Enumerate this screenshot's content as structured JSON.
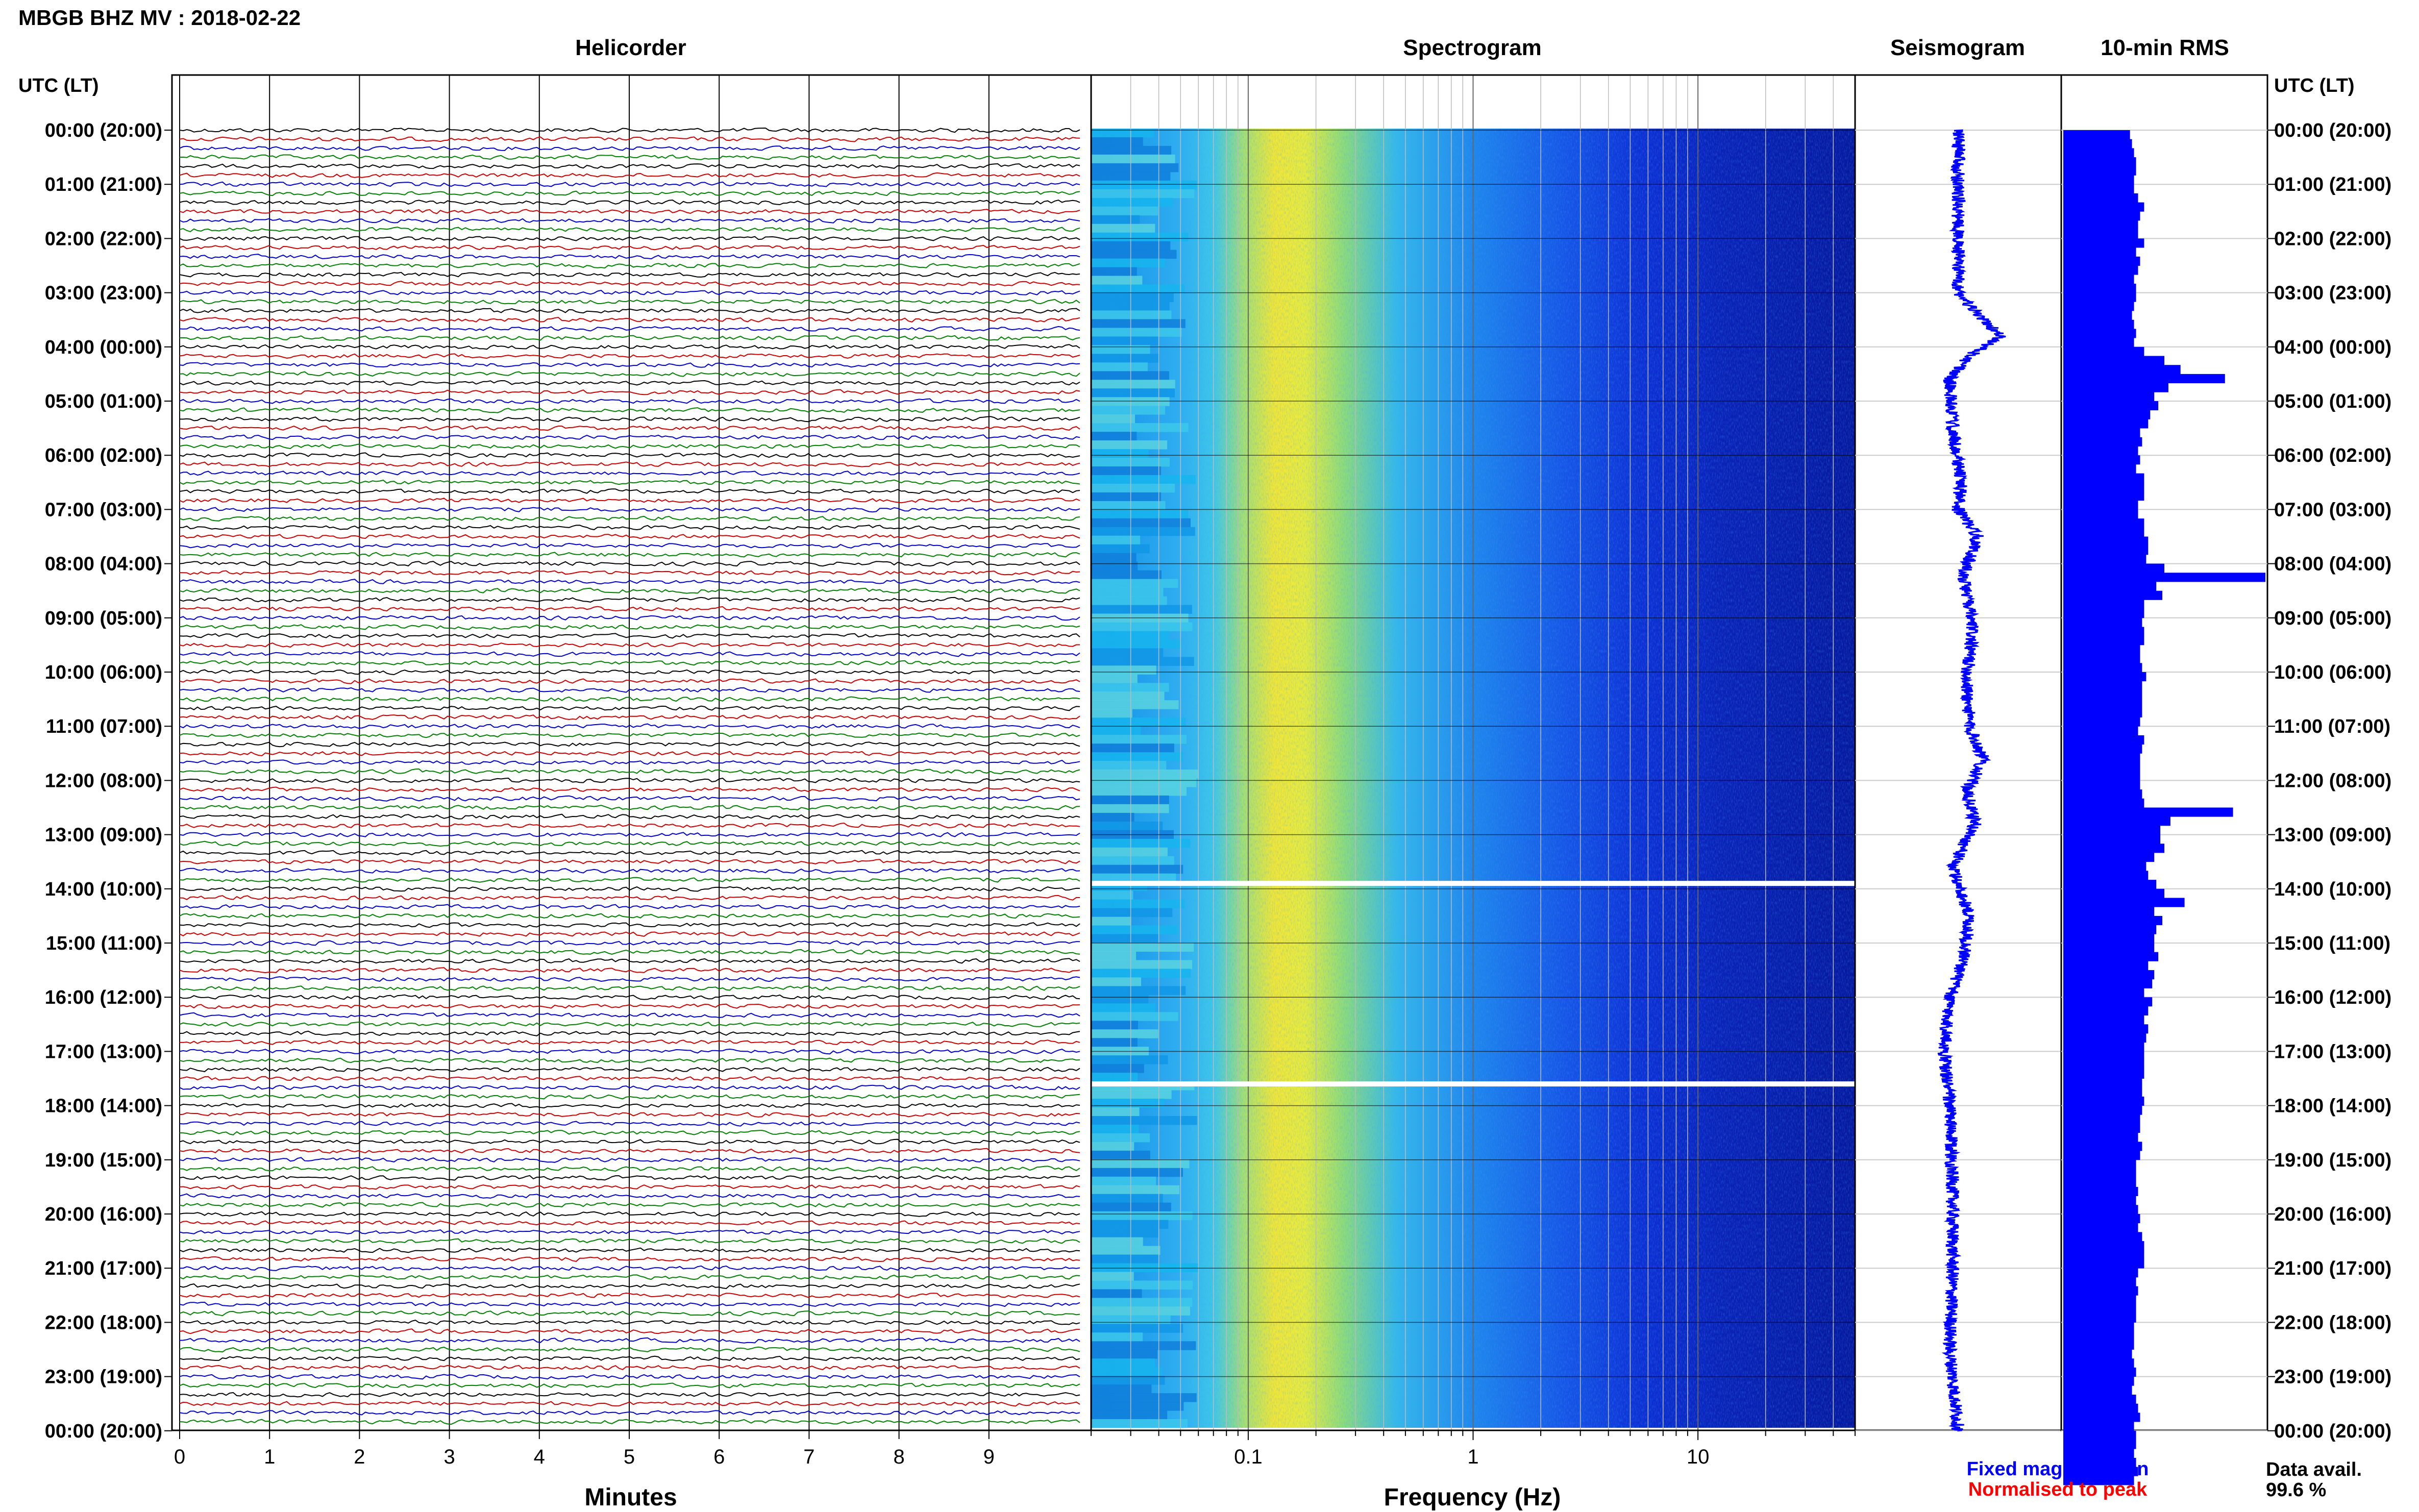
{
  "header": {
    "station_title": "MBGB BHZ MV : 2018-02-22",
    "utc_header_left": "UTC (LT)",
    "utc_header_right": "UTC (LT)"
  },
  "panels": {
    "helicorder": "Helicorder",
    "spectrogram": "Spectrogram",
    "seismogram": "Seismogram",
    "rms": "10-min RMS"
  },
  "footer": {
    "fixed_magnification": "Fixed magnification",
    "normalised_to_peak": "Normalised to peak",
    "data_avail_label": "Data avail.",
    "data_avail_value": "99.6 %"
  },
  "colors": {
    "fixed_magnification": "#0000ff",
    "normalised_to_peak": "#ff0000",
    "rms_bars": "#0000ff",
    "seismogram_trace": "#0000ff",
    "helicorder_traces": [
      "#000000",
      "#cc0000",
      "#0000cc",
      "#008000"
    ]
  },
  "chart_data": [
    {
      "type": "line",
      "panel": "helicorder",
      "xlabel": "Minutes",
      "x_ticks": [
        "0",
        "1",
        "2",
        "3",
        "4",
        "5",
        "6",
        "7",
        "8",
        "9"
      ],
      "xlim": [
        0,
        10
      ],
      "y_ticks": [
        "00:00 (20:00)",
        "01:00 (21:00)",
        "02:00 (22:00)",
        "03:00 (23:00)",
        "04:00 (00:00)",
        "05:00 (01:00)",
        "06:00 (02:00)",
        "07:00 (03:00)",
        "08:00 (04:00)",
        "09:00 (05:00)",
        "10:00 (06:00)",
        "11:00 (07:00)",
        "12:00 (08:00)",
        "13:00 (09:00)",
        "14:00 (10:00)",
        "15:00 (11:00)",
        "16:00 (12:00)",
        "17:00 (13:00)",
        "18:00 (14:00)",
        "19:00 (15:00)",
        "20:00 (16:00)",
        "21:00 (17:00)",
        "22:00 (18:00)",
        "23:00 (19:00)",
        "00:00 (20:00)"
      ],
      "lines_per_hour": 6,
      "grid": true
    },
    {
      "type": "heatmap",
      "panel": "spectrogram",
      "xlabel": "Frequency (Hz)",
      "x_scale": "log",
      "xlim": [
        0.02,
        50
      ],
      "x_ticks": [
        "0.1",
        "1",
        "10"
      ],
      "peak_frequency_hz": 0.2,
      "data_gaps_utc_hours": [
        13.9,
        17.6
      ]
    },
    {
      "type": "line",
      "panel": "seismogram",
      "trace_offsets": [
        {
          "hour": 0,
          "value": 0
        },
        {
          "hour": 3.0,
          "value": 0
        },
        {
          "hour": 3.3,
          "value": 0.5
        },
        {
          "hour": 3.8,
          "value": 1.5
        },
        {
          "hour": 4.2,
          "value": 0.3
        },
        {
          "hour": 4.6,
          "value": -0.3
        },
        {
          "hour": 5.5,
          "value": -0.2
        },
        {
          "hour": 6.5,
          "value": 0.1
        },
        {
          "hour": 7.0,
          "value": 0.0
        },
        {
          "hour": 7.5,
          "value": 0.7
        },
        {
          "hour": 8.2,
          "value": 0.2
        },
        {
          "hour": 9.2,
          "value": 0.5
        },
        {
          "hour": 10.2,
          "value": 0.3
        },
        {
          "hour": 11.0,
          "value": 0.4
        },
        {
          "hour": 11.6,
          "value": 0.9
        },
        {
          "hour": 12.2,
          "value": 0.3
        },
        {
          "hour": 12.8,
          "value": 0.6
        },
        {
          "hour": 13.6,
          "value": -0.2
        },
        {
          "hour": 14.5,
          "value": 0.4
        },
        {
          "hour": 15.3,
          "value": 0.2
        },
        {
          "hour": 16.0,
          "value": -0.3
        },
        {
          "hour": 17.0,
          "value": -0.5
        },
        {
          "hour": 18.0,
          "value": -0.3
        },
        {
          "hour": 19.5,
          "value": -0.2
        },
        {
          "hour": 21.0,
          "value": -0.2
        },
        {
          "hour": 22.5,
          "value": -0.3
        },
        {
          "hour": 24,
          "value": 0.0
        }
      ]
    },
    {
      "type": "bar",
      "panel": "rms",
      "orientation": "horizontal",
      "bin_minutes": 10,
      "values": [
        0.33,
        0.34,
        0.35,
        0.36,
        0.36,
        0.35,
        0.35,
        0.37,
        0.4,
        0.38,
        0.37,
        0.37,
        0.4,
        0.36,
        0.38,
        0.37,
        0.35,
        0.36,
        0.36,
        0.35,
        0.34,
        0.35,
        0.36,
        0.35,
        0.4,
        0.5,
        0.58,
        0.8,
        0.52,
        0.45,
        0.47,
        0.43,
        0.42,
        0.38,
        0.39,
        0.37,
        0.38,
        0.36,
        0.4,
        0.4,
        0.4,
        0.37,
        0.37,
        0.4,
        0.4,
        0.42,
        0.42,
        0.41,
        0.5,
        1.0,
        0.46,
        0.49,
        0.4,
        0.4,
        0.39,
        0.4,
        0.4,
        0.38,
        0.38,
        0.39,
        0.41,
        0.39,
        0.39,
        0.39,
        0.39,
        0.38,
        0.37,
        0.4,
        0.39,
        0.38,
        0.38,
        0.38,
        0.38,
        0.39,
        0.4,
        0.84,
        0.53,
        0.48,
        0.48,
        0.5,
        0.45,
        0.41,
        0.42,
        0.46,
        0.5,
        0.6,
        0.45,
        0.49,
        0.46,
        0.45,
        0.45,
        0.47,
        0.42,
        0.45,
        0.44,
        0.4,
        0.44,
        0.42,
        0.4,
        0.42,
        0.41,
        0.4,
        0.4,
        0.4,
        0.4,
        0.39,
        0.39,
        0.4,
        0.39,
        0.38,
        0.38,
        0.37,
        0.39,
        0.38,
        0.36,
        0.36,
        0.36,
        0.37,
        0.36,
        0.37,
        0.38,
        0.37,
        0.39,
        0.4,
        0.4,
        0.4,
        0.37,
        0.36,
        0.37,
        0.36,
        0.36,
        0.36,
        0.35,
        0.35,
        0.35,
        0.34,
        0.35,
        0.36,
        0.35,
        0.34,
        0.36,
        0.37,
        0.38,
        0.35,
        0.36,
        0.36,
        0.35,
        0.36,
        0.37,
        0.35
      ],
      "xlim": [
        0,
        1
      ]
    }
  ]
}
